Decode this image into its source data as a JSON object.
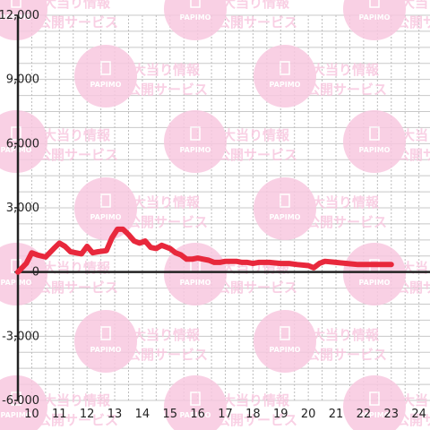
{
  "watermark": {
    "brand": "PAPIMO",
    "line1": "大当り情報",
    "line2": "公開サービス",
    "color": "#f8c8e0"
  },
  "chart_data": {
    "type": "line",
    "title": "",
    "xlabel": "",
    "ylabel": "",
    "xlim": [
      9.5,
      24.4
    ],
    "ylim": [
      -6000,
      12000
    ],
    "x_ticks": [
      10,
      11,
      12,
      13,
      14,
      15,
      16,
      17,
      18,
      19,
      20,
      21,
      22,
      23,
      24
    ],
    "y_ticks": [
      {
        "value": 12000,
        "label": "12,000"
      },
      {
        "value": 9000,
        "label": "9,000"
      },
      {
        "value": 6000,
        "label": "6,000"
      },
      {
        "value": 3000,
        "label": "3,000"
      },
      {
        "value": 0,
        "label": "0"
      },
      {
        "value": -3000,
        "label": "-3,000"
      },
      {
        "value": -6000,
        "label": "-6,000"
      }
    ],
    "grid": true,
    "line_color": "#e8283c",
    "series": [
      {
        "x": [
          9.5,
          9.8,
          10.0,
          10.2,
          10.5,
          10.8,
          11.0,
          11.2,
          11.4,
          11.6,
          11.8,
          12.0,
          12.2,
          12.4,
          12.7,
          12.9,
          13.1,
          13.3,
          13.5,
          13.7,
          13.9,
          14.1,
          14.3,
          14.5,
          14.7,
          15.0,
          15.2,
          15.4,
          15.6,
          15.8,
          16.0,
          16.2,
          16.4,
          16.6,
          16.8,
          17.0,
          17.4,
          17.6,
          17.8,
          18.0,
          18.2,
          18.6,
          19.0,
          19.3,
          19.6,
          20.0,
          20.2,
          20.4,
          20.6,
          21.0,
          21.4,
          21.8,
          22.2,
          22.6,
          23.0
        ],
        "y": [
          0,
          400,
          900,
          800,
          700,
          1100,
          1350,
          1200,
          950,
          900,
          850,
          1200,
          900,
          950,
          1000,
          1600,
          2000,
          2000,
          1750,
          1450,
          1350,
          1450,
          1150,
          1100,
          1250,
          1100,
          900,
          800,
          600,
          600,
          650,
          600,
          550,
          450,
          450,
          500,
          500,
          450,
          450,
          400,
          450,
          450,
          400,
          400,
          350,
          300,
          200,
          400,
          500,
          450,
          400,
          350,
          350,
          350,
          350
        ]
      }
    ]
  }
}
